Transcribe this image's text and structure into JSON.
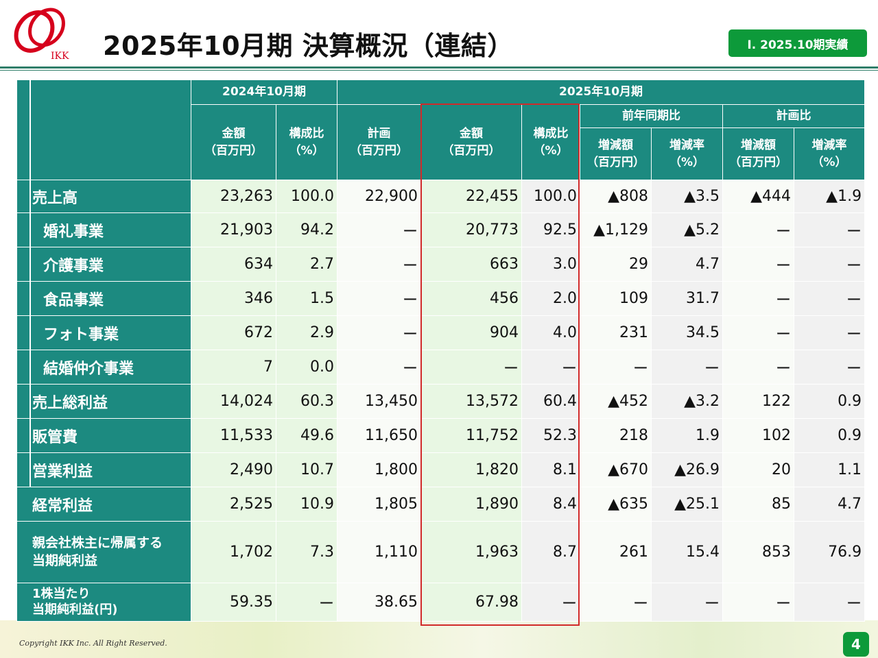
{
  "header": {
    "title": "2025年10月期 決算概況（連結）",
    "badge": "Ⅰ. 2025.10期実績",
    "logo_text": "IKK"
  },
  "colors": {
    "header_teal": "#1c8a80",
    "badge_green": "#0d9a3a",
    "highlight_red": "#d12a2a"
  },
  "table": {
    "groups": {
      "prev": "2024年10月期",
      "curr": "2025年10月期",
      "yoy": "前年同期比",
      "plan": "計画比"
    },
    "columns": {
      "prev_amount": "金額\n（百万円）",
      "prev_ratio": "構成比\n（%）",
      "plan": "計画\n（百万円）",
      "curr_amount": "金額\n（百万円）",
      "curr_ratio": "構成比\n（%）",
      "yoy_amount": "増減額\n（百万円）",
      "yoy_rate": "増減率\n（%）",
      "plan_amount": "増減額\n（百万円）",
      "plan_rate": "増減率\n（%）"
    },
    "rows": [
      {
        "label": "売上高",
        "values": [
          "23,263",
          "100.0",
          "22,900",
          "22,455",
          "100.0",
          "▲808",
          "▲3.5",
          "▲444",
          "▲1.9"
        ]
      },
      {
        "label": "婚礼事業",
        "values": [
          "21,903",
          "94.2",
          "ー",
          "20,773",
          "92.5",
          "▲1,129",
          "▲5.2",
          "ー",
          "ー"
        ]
      },
      {
        "label": "介護事業",
        "values": [
          "634",
          "2.7",
          "ー",
          "663",
          "3.0",
          "29",
          "4.7",
          "ー",
          "ー"
        ]
      },
      {
        "label": "食品事業",
        "values": [
          "346",
          "1.5",
          "ー",
          "456",
          "2.0",
          "109",
          "31.7",
          "ー",
          "ー"
        ]
      },
      {
        "label": "フォト事業",
        "values": [
          "672",
          "2.9",
          "ー",
          "904",
          "4.0",
          "231",
          "34.5",
          "ー",
          "ー"
        ]
      },
      {
        "label": "結婚仲介事業",
        "values": [
          "7",
          "0.0",
          "ー",
          "ー",
          "ー",
          "ー",
          "ー",
          "ー",
          "ー"
        ]
      },
      {
        "label": "売上総利益",
        "values": [
          "14,024",
          "60.3",
          "13,450",
          "13,572",
          "60.4",
          "▲452",
          "▲3.2",
          "122",
          "0.9"
        ]
      },
      {
        "label": "販管費",
        "values": [
          "11,533",
          "49.6",
          "11,650",
          "11,752",
          "52.3",
          "218",
          "1.9",
          "102",
          "0.9"
        ]
      },
      {
        "label": "営業利益",
        "values": [
          "2,490",
          "10.7",
          "1,800",
          "1,820",
          "8.1",
          "▲670",
          "▲26.9",
          "20",
          "1.1"
        ]
      },
      {
        "label": "経常利益",
        "values": [
          "2,525",
          "10.9",
          "1,805",
          "1,890",
          "8.4",
          "▲635",
          "▲25.1",
          "85",
          "4.7"
        ]
      },
      {
        "label": "親会社株主に帰属する\n当期純利益",
        "values": [
          "1,702",
          "7.3",
          "1,110",
          "1,963",
          "8.7",
          "261",
          "15.4",
          "853",
          "76.9"
        ]
      },
      {
        "label": "1株当たり\n当期純利益(円)",
        "values": [
          "59.35",
          "ー",
          "38.65",
          "67.98",
          "ー",
          "ー",
          "ー",
          "ー",
          "ー"
        ]
      }
    ]
  },
  "footer": {
    "copyright": "Copyright IKK Inc. All Right Reserved.",
    "page": "4"
  }
}
